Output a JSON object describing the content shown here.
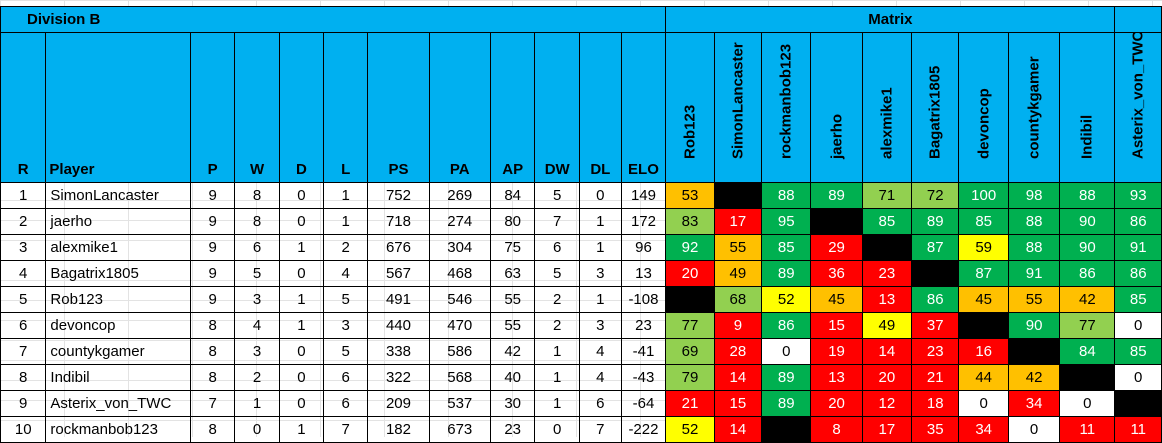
{
  "title_left": "Division B",
  "title_matrix": "Matrix",
  "headers": [
    "R",
    "Player",
    "P",
    "W",
    "D",
    "L",
    "PS",
    "PA",
    "AP",
    "DW",
    "DL",
    "ELO"
  ],
  "matrix_headers": [
    "Rob123",
    "SimonLancaster",
    "rockmanbob123",
    "jaerho",
    "alexmike1",
    "Bagatrix1805",
    "devoncop",
    "countykgamer",
    "Indibil",
    "Asterix_von_TWC"
  ],
  "rows": [
    {
      "r": "1",
      "player": "SimonLancaster",
      "p": "9",
      "w": "8",
      "d": "0",
      "l": "1",
      "ps": "752",
      "pa": "269",
      "ap": "84",
      "dw": "5",
      "dl": "0",
      "elo": "149",
      "cells": [
        {
          "v": "53",
          "c": "orange"
        },
        {
          "v": "",
          "c": "black"
        },
        {
          "v": "88",
          "c": "dgreen"
        },
        {
          "v": "89",
          "c": "dgreen"
        },
        {
          "v": "71",
          "c": "lgreen"
        },
        {
          "v": "72",
          "c": "lgreen"
        },
        {
          "v": "100",
          "c": "dgreen"
        },
        {
          "v": "98",
          "c": "dgreen"
        },
        {
          "v": "88",
          "c": "dgreen"
        },
        {
          "v": "93",
          "c": "dgreen"
        }
      ]
    },
    {
      "r": "2",
      "player": "jaerho",
      "p": "9",
      "w": "8",
      "d": "0",
      "l": "1",
      "ps": "718",
      "pa": "274",
      "ap": "80",
      "dw": "7",
      "dl": "1",
      "elo": "172",
      "cells": [
        {
          "v": "83",
          "c": "lgreen"
        },
        {
          "v": "17",
          "c": "red"
        },
        {
          "v": "95",
          "c": "dgreen"
        },
        {
          "v": "",
          "c": "black"
        },
        {
          "v": "85",
          "c": "dgreen"
        },
        {
          "v": "89",
          "c": "dgreen"
        },
        {
          "v": "85",
          "c": "dgreen"
        },
        {
          "v": "88",
          "c": "dgreen"
        },
        {
          "v": "90",
          "c": "dgreen"
        },
        {
          "v": "86",
          "c": "dgreen"
        }
      ]
    },
    {
      "r": "3",
      "player": "alexmike1",
      "p": "9",
      "w": "6",
      "d": "1",
      "l": "2",
      "ps": "676",
      "pa": "304",
      "ap": "75",
      "dw": "6",
      "dl": "1",
      "elo": "96",
      "cells": [
        {
          "v": "92",
          "c": "dgreen"
        },
        {
          "v": "55",
          "c": "orange"
        },
        {
          "v": "85",
          "c": "dgreen"
        },
        {
          "v": "29",
          "c": "red"
        },
        {
          "v": "",
          "c": "black"
        },
        {
          "v": "87",
          "c": "dgreen"
        },
        {
          "v": "59",
          "c": "yellow"
        },
        {
          "v": "88",
          "c": "dgreen"
        },
        {
          "v": "90",
          "c": "dgreen"
        },
        {
          "v": "91",
          "c": "dgreen"
        }
      ]
    },
    {
      "r": "4",
      "player": "Bagatrix1805",
      "p": "9",
      "w": "5",
      "d": "0",
      "l": "4",
      "ps": "567",
      "pa": "468",
      "ap": "63",
      "dw": "5",
      "dl": "3",
      "elo": "13",
      "cells": [
        {
          "v": "20",
          "c": "red"
        },
        {
          "v": "49",
          "c": "orange"
        },
        {
          "v": "89",
          "c": "dgreen"
        },
        {
          "v": "36",
          "c": "red"
        },
        {
          "v": "23",
          "c": "red"
        },
        {
          "v": "",
          "c": "black"
        },
        {
          "v": "87",
          "c": "dgreen"
        },
        {
          "v": "91",
          "c": "dgreen"
        },
        {
          "v": "86",
          "c": "dgreen"
        },
        {
          "v": "86",
          "c": "dgreen"
        }
      ]
    },
    {
      "r": "5",
      "player": "Rob123",
      "p": "9",
      "w": "3",
      "d": "1",
      "l": "5",
      "ps": "491",
      "pa": "546",
      "ap": "55",
      "dw": "2",
      "dl": "1",
      "elo": "-108",
      "cells": [
        {
          "v": "",
          "c": "black"
        },
        {
          "v": "68",
          "c": "lgreen"
        },
        {
          "v": "52",
          "c": "yellow"
        },
        {
          "v": "45",
          "c": "orange"
        },
        {
          "v": "13",
          "c": "red"
        },
        {
          "v": "86",
          "c": "dgreen"
        },
        {
          "v": "45",
          "c": "orange"
        },
        {
          "v": "55",
          "c": "orange"
        },
        {
          "v": "42",
          "c": "orange"
        },
        {
          "v": "85",
          "c": "dgreen"
        }
      ]
    },
    {
      "r": "6",
      "player": "devoncop",
      "p": "8",
      "w": "4",
      "d": "1",
      "l": "3",
      "ps": "440",
      "pa": "470",
      "ap": "55",
      "dw": "2",
      "dl": "3",
      "elo": "23",
      "cells": [
        {
          "v": "77",
          "c": "lgreen"
        },
        {
          "v": "9",
          "c": "red"
        },
        {
          "v": "86",
          "c": "dgreen"
        },
        {
          "v": "15",
          "c": "red"
        },
        {
          "v": "49",
          "c": "yellow"
        },
        {
          "v": "37",
          "c": "red"
        },
        {
          "v": "",
          "c": "black"
        },
        {
          "v": "90",
          "c": "dgreen"
        },
        {
          "v": "77",
          "c": "lgreen"
        },
        {
          "v": "0",
          "c": "white"
        }
      ]
    },
    {
      "r": "7",
      "player": "countykgamer",
      "p": "8",
      "w": "3",
      "d": "0",
      "l": "5",
      "ps": "338",
      "pa": "586",
      "ap": "42",
      "dw": "1",
      "dl": "4",
      "elo": "-41",
      "cells": [
        {
          "v": "69",
          "c": "lgreen"
        },
        {
          "v": "28",
          "c": "red"
        },
        {
          "v": "0",
          "c": "white"
        },
        {
          "v": "19",
          "c": "red"
        },
        {
          "v": "14",
          "c": "red"
        },
        {
          "v": "23",
          "c": "red"
        },
        {
          "v": "16",
          "c": "red"
        },
        {
          "v": "",
          "c": "black"
        },
        {
          "v": "84",
          "c": "dgreen"
        },
        {
          "v": "85",
          "c": "dgreen"
        }
      ]
    },
    {
      "r": "8",
      "player": "Indibil",
      "p": "8",
      "w": "2",
      "d": "0",
      "l": "6",
      "ps": "322",
      "pa": "568",
      "ap": "40",
      "dw": "1",
      "dl": "4",
      "elo": "-43",
      "cells": [
        {
          "v": "79",
          "c": "lgreen"
        },
        {
          "v": "14",
          "c": "red"
        },
        {
          "v": "89",
          "c": "dgreen"
        },
        {
          "v": "13",
          "c": "red"
        },
        {
          "v": "20",
          "c": "red"
        },
        {
          "v": "21",
          "c": "red"
        },
        {
          "v": "44",
          "c": "orange"
        },
        {
          "v": "42",
          "c": "orange"
        },
        {
          "v": "",
          "c": "black"
        },
        {
          "v": "0",
          "c": "white"
        }
      ]
    },
    {
      "r": "9",
      "player": "Asterix_von_TWC",
      "p": "7",
      "w": "1",
      "d": "0",
      "l": "6",
      "ps": "209",
      "pa": "537",
      "ap": "30",
      "dw": "1",
      "dl": "6",
      "elo": "-64",
      "cells": [
        {
          "v": "21",
          "c": "red"
        },
        {
          "v": "15",
          "c": "red"
        },
        {
          "v": "89",
          "c": "dgreen"
        },
        {
          "v": "20",
          "c": "red"
        },
        {
          "v": "12",
          "c": "red"
        },
        {
          "v": "18",
          "c": "red"
        },
        {
          "v": "0",
          "c": "white"
        },
        {
          "v": "34",
          "c": "red"
        },
        {
          "v": "0",
          "c": "white"
        },
        {
          "v": "",
          "c": "black"
        }
      ]
    },
    {
      "r": "10",
      "player": "rockmanbob123",
      "p": "8",
      "w": "0",
      "d": "1",
      "l": "7",
      "ps": "182",
      "pa": "673",
      "ap": "23",
      "dw": "0",
      "dl": "7",
      "elo": "-222",
      "cells": [
        {
          "v": "52",
          "c": "yellow"
        },
        {
          "v": "14",
          "c": "red"
        },
        {
          "v": "",
          "c": "black"
        },
        {
          "v": "8",
          "c": "red"
        },
        {
          "v": "17",
          "c": "red"
        },
        {
          "v": "35",
          "c": "red"
        },
        {
          "v": "34",
          "c": "red"
        },
        {
          "v": "0",
          "c": "white"
        },
        {
          "v": "11",
          "c": "red"
        },
        {
          "v": "11",
          "c": "red"
        }
      ]
    }
  ]
}
